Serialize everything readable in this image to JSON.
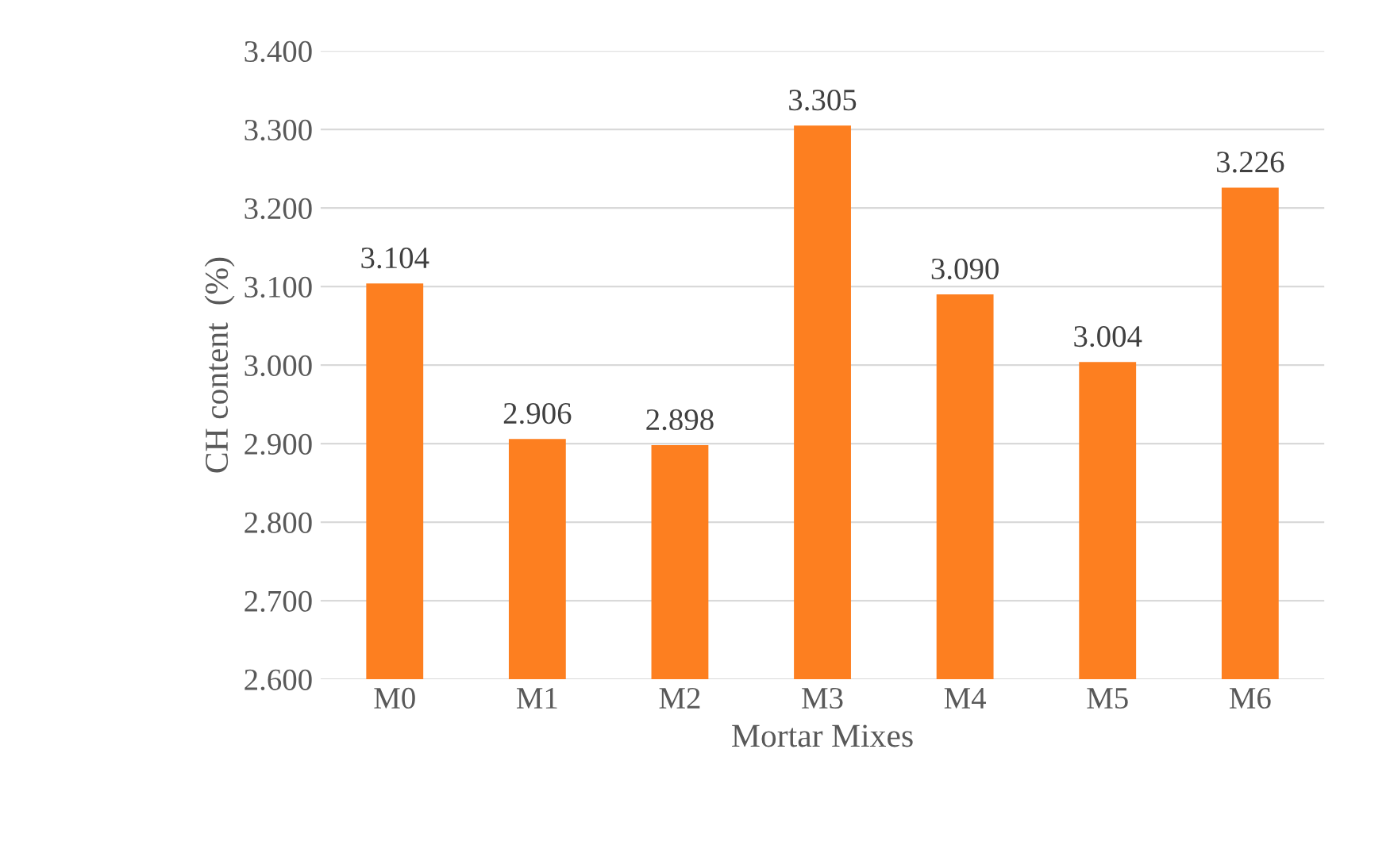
{
  "chart_data": {
    "type": "bar",
    "xlabel": "Mortar Mixes",
    "ylabel": "CH content  (%)",
    "categories": [
      "M0",
      "M1",
      "M2",
      "M3",
      "M4",
      "M5",
      "M6"
    ],
    "values": [
      3.104,
      2.906,
      2.898,
      3.305,
      3.09,
      3.004,
      3.226
    ],
    "value_labels": [
      "3.104",
      "2.906",
      "2.898",
      "3.305",
      "3.090",
      "3.004",
      "3.226"
    ],
    "color": "#fd7f20",
    "ylim": [
      2.6,
      3.4
    ],
    "yticks": [
      {
        "value": 2.6,
        "label": "2.600"
      },
      {
        "value": 2.7,
        "label": "2.700"
      },
      {
        "value": 2.8,
        "label": "2.800"
      },
      {
        "value": 2.9,
        "label": "2.900"
      },
      {
        "value": 3.0,
        "label": "3.000"
      },
      {
        "value": 3.1,
        "label": "3.100"
      },
      {
        "value": 3.2,
        "label": "3.200"
      },
      {
        "value": 3.3,
        "label": "3.300"
      },
      {
        "value": 3.4,
        "label": "3.400"
      }
    ],
    "grid": "y"
  }
}
